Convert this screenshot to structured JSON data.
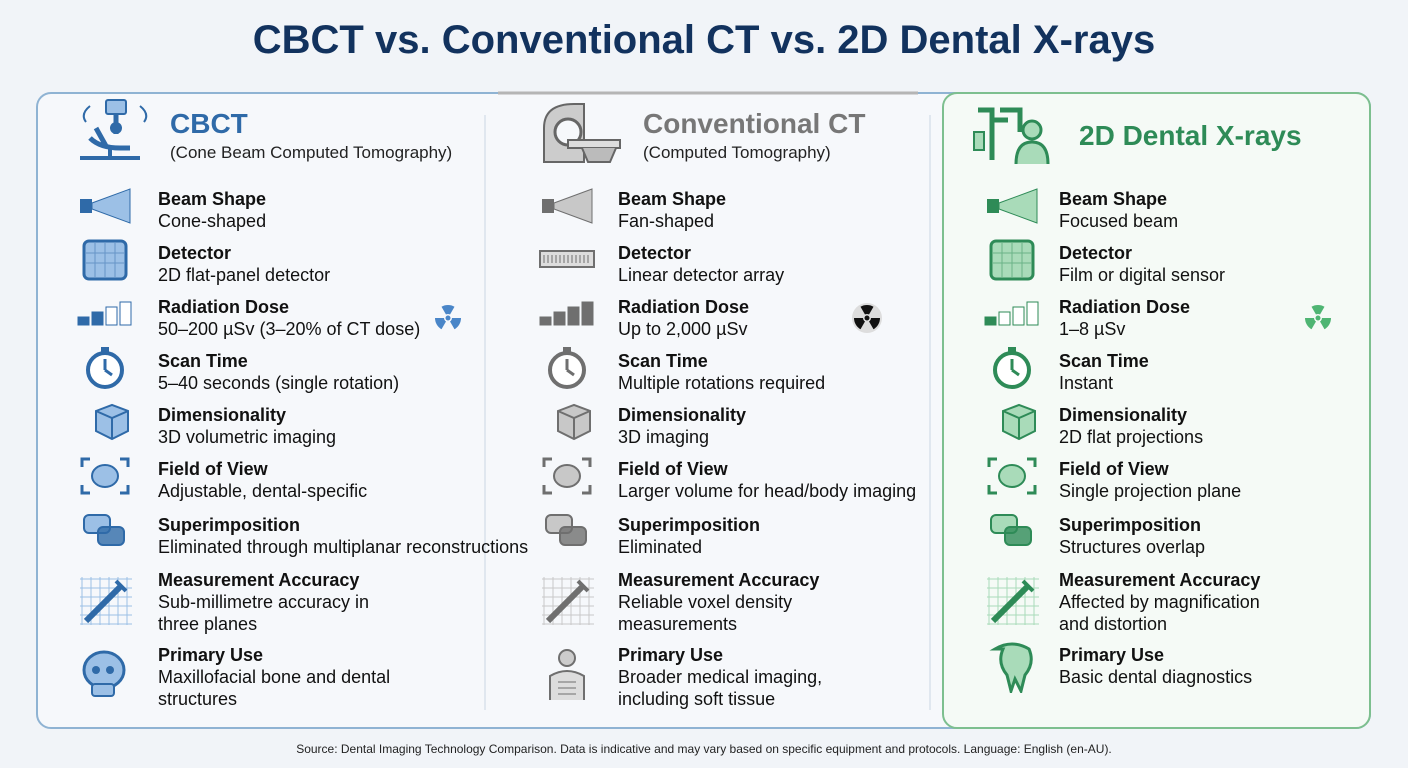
{
  "title": "CBCT vs. Conventional CT vs. 2D Dental X-rays",
  "columns": [
    {
      "title": "CBCT",
      "subtitle": "(Cone Beam Computed Tomography)",
      "rows": [
        {
          "label": "Beam Shape",
          "value": [
            "Cone-shaped"
          ]
        },
        {
          "label": "Detector",
          "value": [
            "2D flat-panel detector"
          ]
        },
        {
          "label": "Radiation Dose",
          "value": [
            "50–200 µSv (3–20% of CT dose)"
          ]
        },
        {
          "label": "Scan Time",
          "value": [
            "5–40 seconds (single rotation)"
          ]
        },
        {
          "label": "Dimensionality",
          "value": [
            "3D volumetric imaging"
          ]
        },
        {
          "label": "Field of View",
          "value": [
            "Adjustable, dental-specific"
          ]
        },
        {
          "label": "Superimposition",
          "value": [
            "Eliminated through multiplanar reconstructions"
          ]
        },
        {
          "label": "Measurement Accuracy",
          "value": [
            "Sub-millimetre accuracy in",
            "three planes"
          ]
        },
        {
          "label": "Primary Use",
          "value": [
            "Maxillofacial bone and dental",
            "structures"
          ]
        }
      ]
    },
    {
      "title": "Conventional CT",
      "subtitle": "(Computed Tomography)",
      "rows": [
        {
          "label": "Beam Shape",
          "value": [
            "Fan-shaped"
          ]
        },
        {
          "label": "Detector",
          "value": [
            "Linear detector array"
          ]
        },
        {
          "label": "Radiation Dose",
          "value": [
            "Up to 2,000 µSv"
          ]
        },
        {
          "label": "Scan Time",
          "value": [
            "Multiple rotations required"
          ]
        },
        {
          "label": "Dimensionality",
          "value": [
            "3D imaging"
          ]
        },
        {
          "label": "Field of View",
          "value": [
            "Larger volume for head/body imaging"
          ]
        },
        {
          "label": "Superimposition",
          "value": [
            "Eliminated"
          ]
        },
        {
          "label": "Measurement Accuracy",
          "value": [
            "Reliable voxel density",
            "measurements"
          ]
        },
        {
          "label": "Primary Use",
          "value": [
            "Broader medical imaging,",
            "including soft tissue"
          ]
        }
      ]
    },
    {
      "title": "2D Dental X-rays",
      "rows": [
        {
          "label": "Beam Shape",
          "value": [
            "Focused beam"
          ]
        },
        {
          "label": "Detector",
          "value": [
            "Film or digital sensor"
          ]
        },
        {
          "label": "Radiation Dose",
          "value": [
            "1–8 µSv"
          ]
        },
        {
          "label": "Scan Time",
          "value": [
            "Instant"
          ]
        },
        {
          "label": "Dimensionality",
          "value": [
            "2D flat projections"
          ]
        },
        {
          "label": "Field of View",
          "value": [
            "Single projection plane"
          ]
        },
        {
          "label": "Superimposition",
          "value": [
            "Structures overlap"
          ]
        },
        {
          "label": "Measurement Accuracy",
          "value": [
            "Affected by magnification",
            "and distortion"
          ]
        },
        {
          "label": "Primary Use",
          "value": [
            "Basic dental diagnostics"
          ]
        }
      ]
    }
  ],
  "source": "Source: Dental Imaging Technology Comparison. Data is indicative and may vary based on specific equipment and protocols. Language: English (en-AU)."
}
